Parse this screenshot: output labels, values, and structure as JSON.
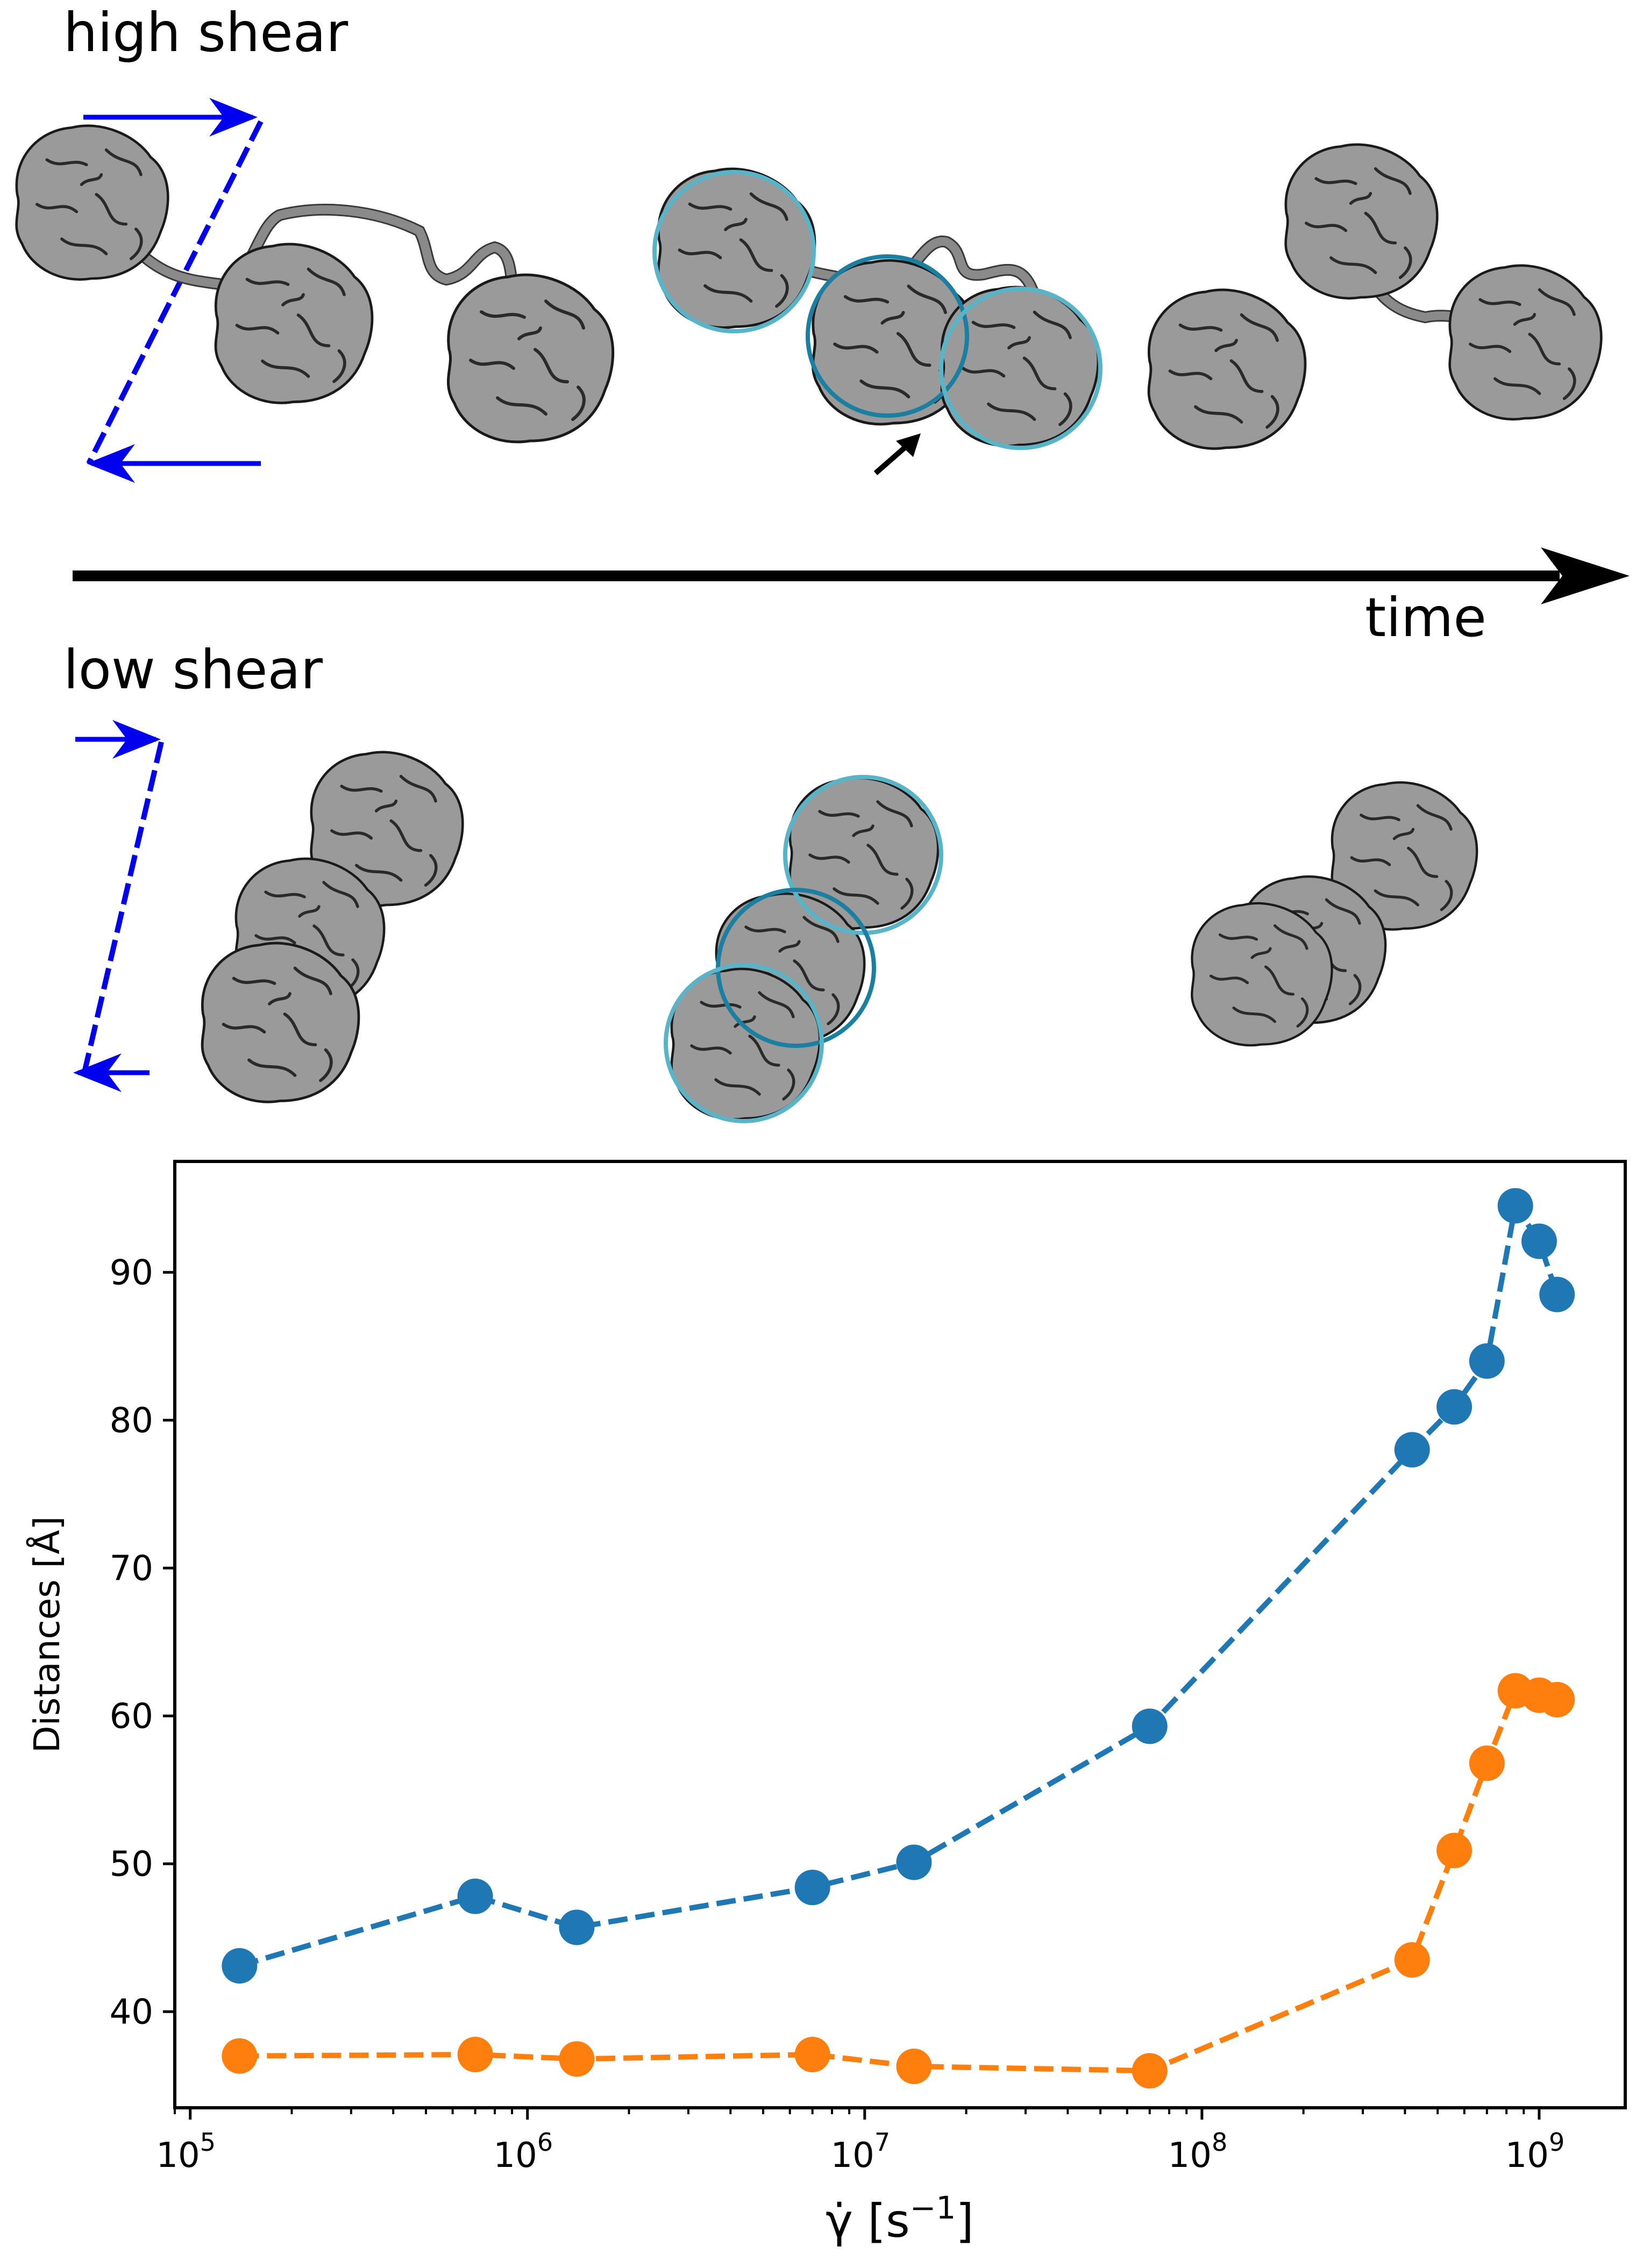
{
  "labels": {
    "high_shear": "high shear",
    "time": "time",
    "low_shear": "low shear"
  },
  "colors": {
    "series1": "#1f77b4",
    "series2": "#ff7f0e",
    "shear_arrow": "#0000ee",
    "circle_light": "#5ab4c8",
    "circle_dark": "#1a7fa0"
  },
  "chart_data": {
    "type": "line",
    "x_scale": "log",
    "xlabel": "γ̇ [s⁻¹]",
    "xlabel_main": "γ̇ [s",
    "xlabel_sup": "−1",
    "xlabel_end": "]",
    "ylabel": "Distances [Å]",
    "xlim": [
      90000,
      1800000000
    ],
    "ylim": [
      33.5,
      97.5
    ],
    "x_ticks": [
      {
        "value": 100000,
        "base": "10",
        "exp": "5"
      },
      {
        "value": 1000000,
        "base": "10",
        "exp": "6"
      },
      {
        "value": 10000000,
        "base": "10",
        "exp": "7"
      },
      {
        "value": 100000000,
        "base": "10",
        "exp": "8"
      },
      {
        "value": 1000000000,
        "base": "10",
        "exp": "9"
      }
    ],
    "y_ticks": [
      {
        "value": 40,
        "label": "40"
      },
      {
        "value": 50,
        "label": "50"
      },
      {
        "value": 60,
        "label": "60"
      },
      {
        "value": 70,
        "label": "70"
      },
      {
        "value": 80,
        "label": "80"
      },
      {
        "value": 90,
        "label": "90"
      }
    ],
    "series": [
      {
        "name": "blue",
        "color": "#1f77b4",
        "x": [
          140000,
          700000,
          1400000,
          7000000,
          14000000,
          70000000,
          420000000,
          560000000,
          700000000,
          850000000,
          1000000000,
          1130000000
        ],
        "values": [
          43.1,
          47.8,
          45.7,
          48.4,
          50.1,
          59.3,
          78.0,
          80.9,
          84.0,
          94.5,
          92.1,
          88.5
        ]
      },
      {
        "name": "orange",
        "color": "#ff7f0e",
        "x": [
          140000,
          700000,
          1400000,
          7000000,
          14000000,
          70000000,
          420000000,
          560000000,
          700000000,
          850000000,
          1000000000,
          1130000000
        ],
        "values": [
          37.0,
          37.1,
          36.8,
          37.1,
          36.3,
          36.0,
          43.5,
          50.9,
          56.8,
          61.7,
          61.4,
          61.1
        ]
      }
    ]
  }
}
